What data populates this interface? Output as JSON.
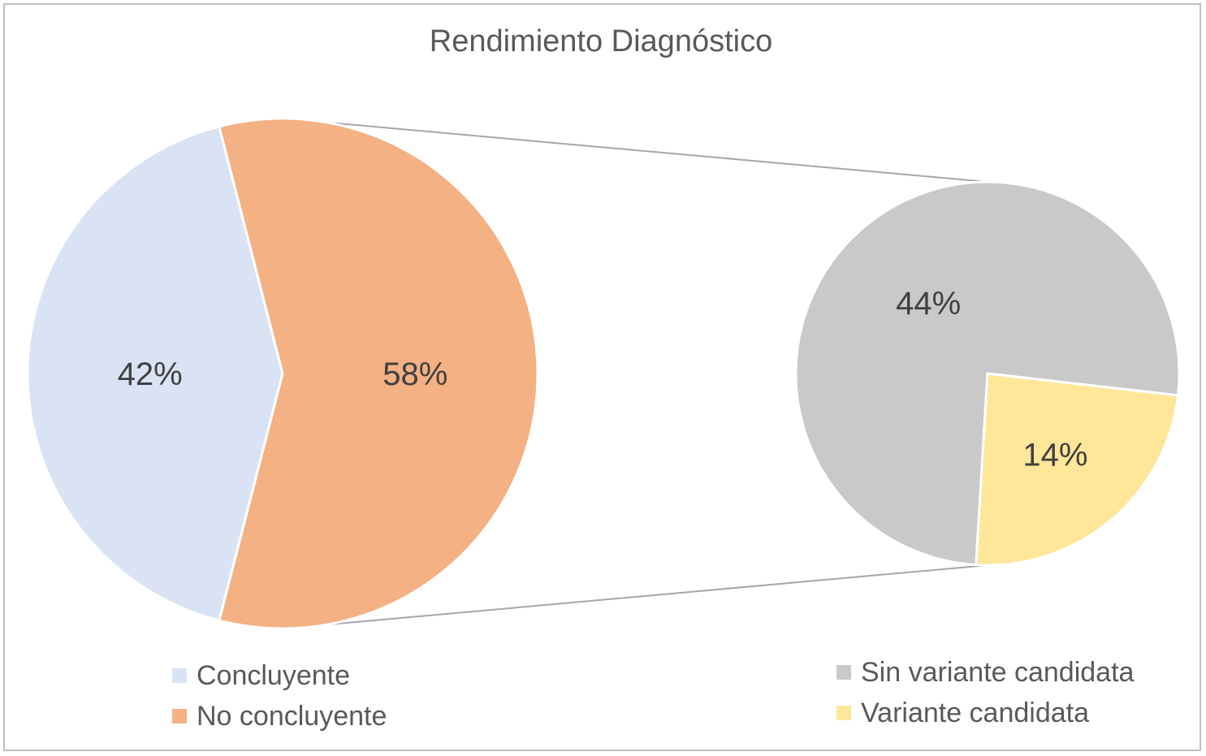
{
  "chart_data": {
    "type": "pie",
    "subtype": "pie-of-pie",
    "title": "Rendimiento Diagnóstico",
    "primary": {
      "slices": [
        {
          "name": "Concluyente",
          "value": 42,
          "label": "42%",
          "color": "#dae3f3"
        },
        {
          "name": "No concluyente",
          "value": 58,
          "label": "58%",
          "color": "#f4b183"
        }
      ]
    },
    "secondary": {
      "breaks_out": "No concluyente",
      "slices": [
        {
          "name": "Sin variante candidata",
          "value": 44,
          "label": "44%",
          "color": "#c9c9c9"
        },
        {
          "name": "Variante candidata",
          "value": 14,
          "label": "14%",
          "color": "#ffe699"
        }
      ]
    },
    "legend_placement": [
      "bottom-left",
      "bottom-right"
    ]
  },
  "legend_left": [
    {
      "label": "Concluyente",
      "color": "#dae3f3"
    },
    {
      "label": "No concluyente",
      "color": "#f4b183"
    }
  ],
  "legend_right": [
    {
      "label": "Sin variante candidata",
      "color": "#c9c9c9"
    },
    {
      "label": "Variante candidata",
      "color": "#ffe699"
    }
  ]
}
